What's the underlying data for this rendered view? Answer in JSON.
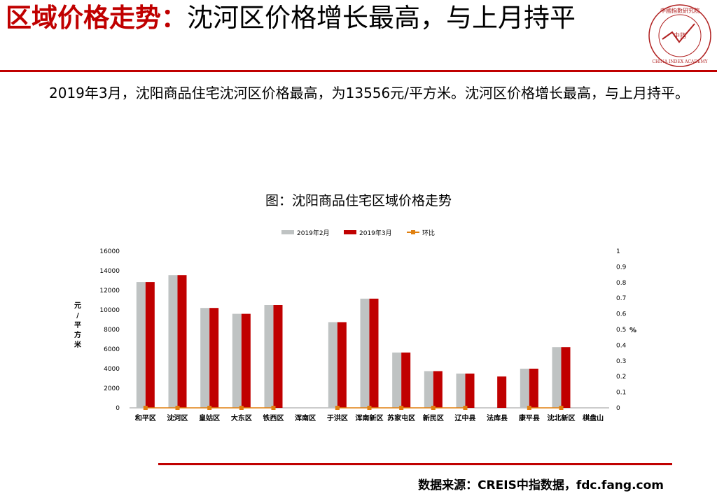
{
  "header": {
    "title_highlight": "区域价格走势：",
    "title_rest": "沈河区价格增长最高，与上月持平",
    "logo_text_top": "中國指數研究院",
    "logo_text_center": "中指",
    "logo_text_bottom": "CHINA INDEX ACADEMY",
    "accent_color": "#c00000"
  },
  "summary": "2019年3月，沈阳商品住宅沈河区价格最高，为13556元/平方米。沈河区价格增长最高，与上月持平。",
  "chart_title": "图：沈阳商品住宅区域价格走势",
  "chart_data": {
    "type": "bar",
    "categories": [
      "和平区",
      "沈河区",
      "皇姑区",
      "大东区",
      "铁西区",
      "浑南区",
      "于洪区",
      "浑南新区",
      "苏家屯区",
      "新民区",
      "辽中县",
      "法库县",
      "康平县",
      "沈北新区",
      "棋盘山"
    ],
    "series": [
      {
        "name": "2019年2月",
        "type": "bar",
        "axis": "left",
        "color": "#bfc3c3",
        "values": [
          12850,
          13556,
          10200,
          9600,
          10500,
          null,
          8750,
          11150,
          5650,
          3750,
          3500,
          null,
          4000,
          6200,
          null
        ]
      },
      {
        "name": "2019年3月",
        "type": "bar",
        "axis": "left",
        "color": "#c00000",
        "values": [
          12850,
          13556,
          10200,
          9600,
          10500,
          null,
          8750,
          11150,
          5650,
          3750,
          3500,
          3200,
          4000,
          6200,
          null
        ]
      },
      {
        "name": "环比",
        "type": "line",
        "axis": "right",
        "color": "#e08010",
        "values": [
          0,
          0,
          0,
          0,
          0,
          null,
          0,
          0,
          0,
          0,
          0,
          null,
          0,
          0,
          null
        ]
      }
    ],
    "ylabel": "元/平方米",
    "ylim": [
      0,
      16000
    ],
    "yticks": [
      0,
      2000,
      4000,
      6000,
      8000,
      10000,
      12000,
      14000,
      16000
    ],
    "y2label": "%",
    "y2lim": [
      0,
      1
    ],
    "y2ticks": [
      "0",
      "0.1",
      "0.2",
      "0.3",
      "0.4",
      "0.5",
      "0.6",
      "0.7",
      "0.8",
      "0.9",
      "1"
    ],
    "legend_position": "top",
    "grid": false
  },
  "footer": {
    "source": "数据来源：CREIS中指数据，fdc.fang.com"
  }
}
